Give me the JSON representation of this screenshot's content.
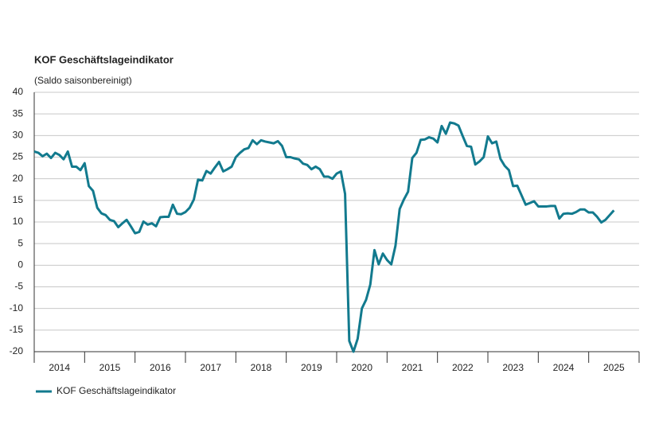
{
  "chart_data": {
    "type": "line",
    "title": "KOF Geschäftslageindikator",
    "subtitle": "(Saldo saisonbereinigt)",
    "categories": [
      "2014",
      null,
      null,
      null,
      null,
      null,
      null,
      null,
      null,
      null,
      null,
      null,
      "2015",
      null,
      null,
      null,
      null,
      null,
      null,
      null,
      null,
      null,
      null,
      null,
      "2016",
      null,
      null,
      null,
      null,
      null,
      null,
      null,
      null,
      null,
      null,
      null,
      "2017",
      null,
      null,
      null,
      null,
      null,
      null,
      null,
      null,
      null,
      null,
      null,
      "2018",
      null,
      null,
      null,
      null,
      null,
      null,
      null,
      null,
      null,
      null,
      null,
      "2019",
      null,
      null,
      null,
      null,
      null,
      null,
      null,
      null,
      null,
      null,
      null,
      "2020",
      null,
      null,
      null,
      null,
      null,
      null,
      null,
      null,
      null,
      null,
      null,
      "2021",
      null,
      null,
      null,
      null,
      null,
      null,
      null,
      null,
      null,
      null,
      null,
      "2022",
      null,
      null,
      null,
      null,
      null,
      null,
      null,
      null,
      null,
      null,
      null,
      "2023",
      null,
      null,
      null,
      null,
      null,
      null,
      null,
      null,
      null,
      null,
      null,
      "2024",
      null,
      null,
      null,
      null,
      null,
      null,
      null,
      null,
      null,
      null,
      null,
      "2025",
      null,
      null,
      null,
      null,
      null,
      null
    ],
    "series": [
      {
        "name": "KOF Geschäftslageindikator",
        "color": "#127a8e",
        "values": [
          26.3,
          26,
          25.2,
          25.8,
          24.8,
          26,
          25.5,
          24.5,
          26.3,
          22.8,
          22.8,
          22,
          23.6,
          18.3,
          17.2,
          13.3,
          12,
          11.6,
          10.5,
          10.2,
          8.8,
          9.7,
          10.5,
          9,
          7.4,
          7.7,
          10.1,
          9.4,
          9.7,
          9,
          11.1,
          11.2,
          11.2,
          14,
          11.9,
          11.8,
          12.3,
          13.3,
          15.2,
          19.8,
          19.6,
          21.8,
          21.2,
          22.6,
          23.9,
          21.7,
          22.2,
          22.8,
          25,
          26,
          26.8,
          27.1,
          28.9,
          28,
          28.9,
          28.6,
          28.4,
          28.2,
          28.7,
          27.6,
          25,
          25,
          24.7,
          24.5,
          23.5,
          23.2,
          22.2,
          22.8,
          22.2,
          20.5,
          20.5,
          20,
          21.2,
          21.7,
          16.5,
          -17.5,
          -20,
          -17,
          -10,
          -8,
          -4.5,
          3.5,
          0.2,
          2.7,
          1.2,
          0.2,
          4.5,
          13,
          15.2,
          17,
          24.8,
          26,
          29,
          29.1,
          29.6,
          29.3,
          28.4,
          32.2,
          30.4,
          33,
          32.8,
          32.3,
          29.9,
          27.6,
          27.4,
          23.3,
          24,
          25,
          29.8,
          28.2,
          28.6,
          24.6,
          23,
          22,
          18.3,
          18.4,
          16.2,
          14,
          14.4,
          14.8,
          13.6,
          13.6,
          13.6,
          13.7,
          13.7,
          10.8,
          11.9,
          12,
          11.9,
          12.3,
          12.9,
          12.9,
          12.2,
          12.2,
          11.2,
          9.9,
          10.5,
          11.6,
          12.7
        ]
      }
    ],
    "ylim": [
      -20,
      40
    ],
    "yticks": [
      -20,
      -15,
      -10,
      -5,
      0,
      5,
      10,
      15,
      20,
      25,
      30,
      35,
      40
    ],
    "grid": true
  }
}
